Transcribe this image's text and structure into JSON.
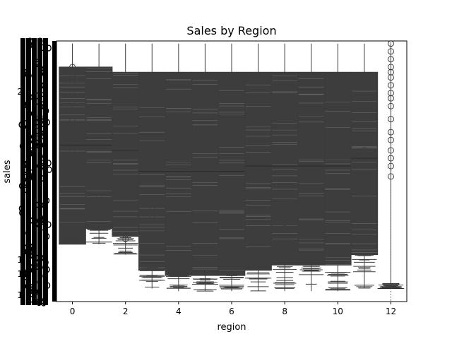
{
  "chart_data": {
    "type": "box",
    "title": "Sales by Region",
    "xlabel": "region",
    "ylabel": "sales",
    "x_ticks": [
      "0",
      "2",
      "4",
      "6",
      "8",
      "10",
      "12"
    ],
    "xlim": [
      -0.6,
      12.6
    ],
    "categories": [
      0,
      1,
      2,
      3,
      4,
      5,
      6,
      7,
      8,
      9,
      10,
      11,
      12
    ],
    "y_ticks_visible": [
      "2",
      "1",
      "1",
      "1"
    ],
    "box_color": "#3d3d3d",
    "outlier_style": "open-circle",
    "boxes": [
      {
        "region": 0,
        "whisker_low": 0.22,
        "q1": 0.22,
        "median": 0.6,
        "q3": 0.9,
        "whisker_high": 0.99,
        "outliers": [
          0.55,
          0.58,
          0.62,
          0.65,
          0.68,
          0.7,
          0.73,
          0.76,
          0.8,
          0.84,
          0.87,
          0.9
        ]
      },
      {
        "region": 1,
        "whisker_low": 0.22,
        "q1": 0.28,
        "median": 0.6,
        "q3": 0.9,
        "whisker_high": 0.99,
        "outliers": [
          0.38,
          0.4
        ]
      },
      {
        "region": 2,
        "whisker_low": 0.18,
        "q1": 0.25,
        "median": 0.58,
        "q3": 0.88,
        "whisker_high": 0.99,
        "outliers": [
          0.24
        ]
      },
      {
        "region": 3,
        "whisker_low": 0.05,
        "q1": 0.12,
        "median": 0.5,
        "q3": 0.88,
        "whisker_high": 0.99,
        "outliers": [
          0.33,
          0.36
        ]
      },
      {
        "region": 4,
        "whisker_low": 0.04,
        "q1": 0.1,
        "median": 0.5,
        "q3": 0.88,
        "whisker_high": 0.99,
        "outliers": []
      },
      {
        "region": 5,
        "whisker_low": 0.04,
        "q1": 0.1,
        "median": 0.5,
        "q3": 0.88,
        "whisker_high": 0.99,
        "outliers": []
      },
      {
        "region": 6,
        "whisker_low": 0.04,
        "q1": 0.1,
        "median": 0.5,
        "q3": 0.88,
        "whisker_high": 0.99,
        "outliers": []
      },
      {
        "region": 7,
        "whisker_low": 0.04,
        "q1": 0.12,
        "median": 0.52,
        "q3": 0.88,
        "whisker_high": 0.99,
        "outliers": []
      },
      {
        "region": 8,
        "whisker_low": 0.04,
        "q1": 0.14,
        "median": 0.52,
        "q3": 0.88,
        "whisker_high": 0.99,
        "outliers": [
          0.28
        ]
      },
      {
        "region": 9,
        "whisker_low": 0.04,
        "q1": 0.14,
        "median": 0.52,
        "q3": 0.88,
        "whisker_high": 0.99,
        "outliers": []
      },
      {
        "region": 10,
        "whisker_low": 0.04,
        "q1": 0.14,
        "median": 0.52,
        "q3": 0.88,
        "whisker_high": 0.99,
        "outliers": [
          0.28
        ]
      },
      {
        "region": 11,
        "whisker_low": 0.05,
        "q1": 0.18,
        "median": 0.55,
        "q3": 0.88,
        "whisker_high": 0.99,
        "outliers": [
          0.58
        ]
      },
      {
        "region": 12,
        "whisker_low": 0.05,
        "q1": 0.05,
        "median": 0.05,
        "q3": 0.05,
        "whisker_high": 0.99,
        "outliers": [
          0.48,
          0.52,
          0.55,
          0.58,
          0.62,
          0.65,
          0.7,
          0.75,
          0.78,
          0.8,
          0.83,
          0.86,
          0.88,
          0.9,
          0.93,
          0.96,
          0.99
        ]
      }
    ]
  }
}
